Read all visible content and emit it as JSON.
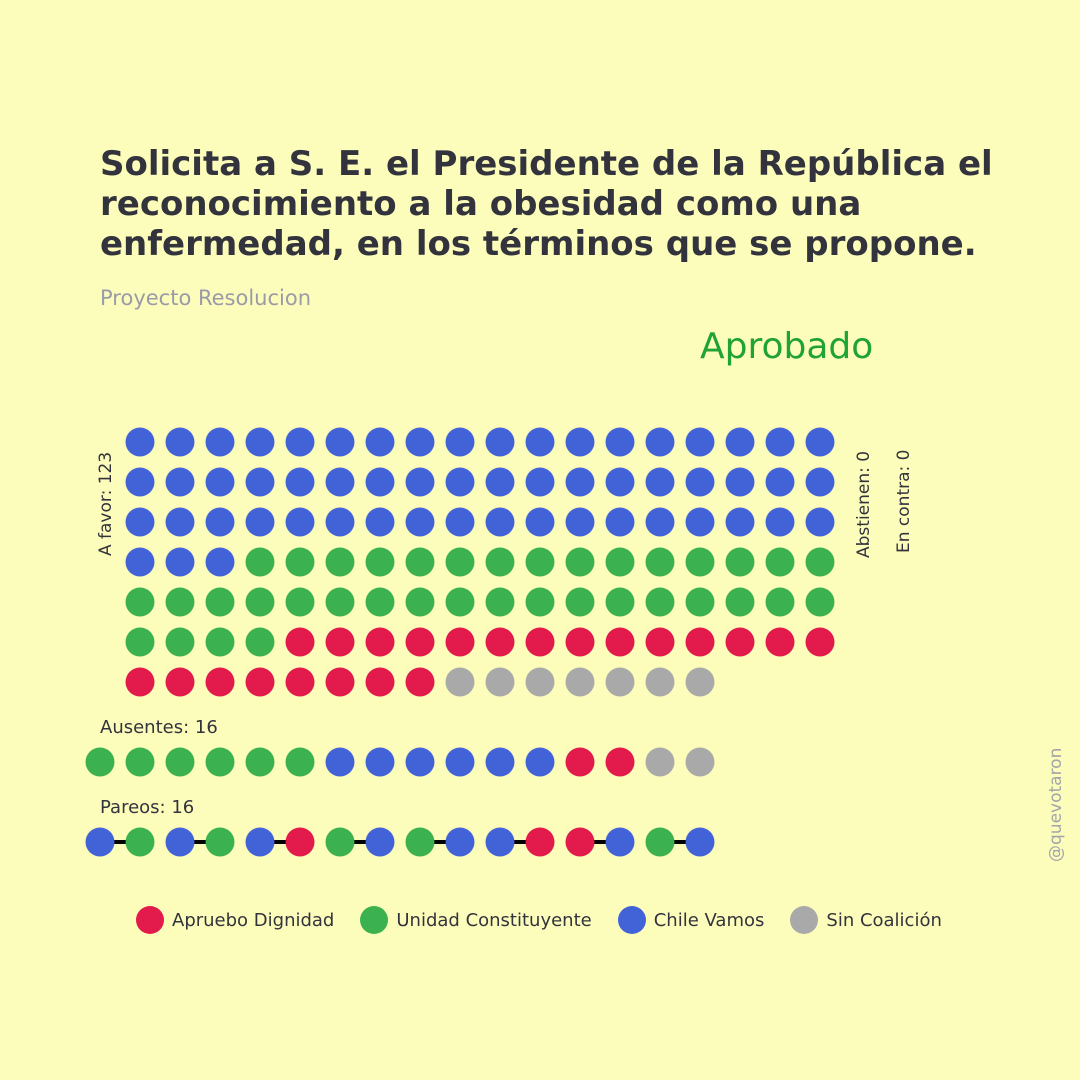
{
  "title": "Solicita a S. E. el Presidente de la República el reconocimiento a la obesidad como una enfermedad, en los términos que se propone.",
  "subtitle": "Proyecto Resolucion",
  "result": "Aprobado",
  "labels": {
    "favor": "A favor: 123",
    "abstain": "Abstienen: 0",
    "contra": "En contra: 0",
    "absent": "Ausentes: 16",
    "pairs": "Pareos: 16"
  },
  "watermark": "@quevotaron",
  "colors": {
    "apruebo": "#e31a4c",
    "unidad": "#3bb24f",
    "chile": "#4263d8",
    "sin": "#a9a9a9",
    "approved": "#1fa335",
    "background": "#fdfdbb"
  },
  "legend": [
    {
      "key": "apruebo",
      "label": "Apruebo Dignidad",
      "color": "#e31a4c"
    },
    {
      "key": "unidad",
      "label": "Unidad Constituyente",
      "color": "#3bb24f"
    },
    {
      "key": "chile",
      "label": "Chile Vamos",
      "color": "#4263d8"
    },
    {
      "key": "sin",
      "label": "Sin Coalición",
      "color": "#a9a9a9"
    }
  ],
  "chart_data": {
    "type": "waffle",
    "groups": [
      {
        "name": "A favor",
        "total": 123,
        "counts": {
          "chile": 57,
          "unidad": 37,
          "apruebo": 22,
          "sin": 7
        }
      },
      {
        "name": "Abstienen",
        "total": 0,
        "counts": {}
      },
      {
        "name": "En contra",
        "total": 0,
        "counts": {}
      },
      {
        "name": "Ausentes",
        "total": 16,
        "sequence": [
          "unidad",
          "unidad",
          "unidad",
          "unidad",
          "unidad",
          "unidad",
          "chile",
          "chile",
          "chile",
          "chile",
          "chile",
          "chile",
          "apruebo",
          "apruebo",
          "sin",
          "sin"
        ]
      },
      {
        "name": "Pareos",
        "total": 16,
        "sequence": [
          "chile",
          "unidad",
          "chile",
          "unidad",
          "chile",
          "apruebo",
          "unidad",
          "chile",
          "unidad",
          "chile",
          "chile",
          "apruebo",
          "apruebo",
          "chile",
          "unidad",
          "chile"
        ]
      }
    ]
  }
}
